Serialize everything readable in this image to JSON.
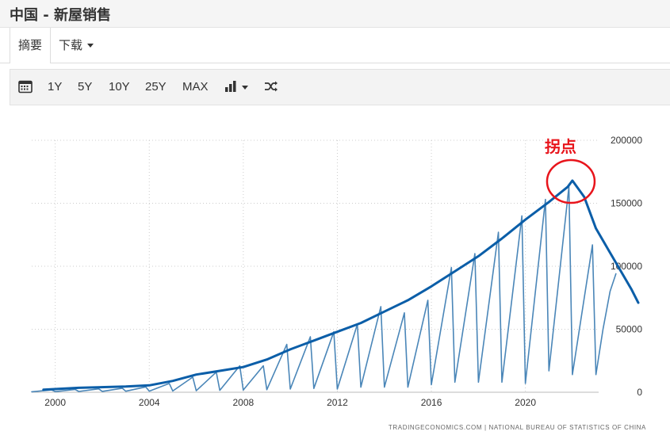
{
  "title": "中国 - 新屋销售",
  "tabs": {
    "summary": "摘要",
    "download": "下载"
  },
  "toolbar": {
    "calendar_icon": "calendar-icon",
    "ranges": [
      "1Y",
      "5Y",
      "10Y",
      "25Y",
      "MAX"
    ],
    "chart_type_icon": "bar-chart-icon",
    "shuffle_icon": "shuffle-icon"
  },
  "source_text": "TRADINGECONOMICS.COM | NATIONAL BUREAU OF STATISTICS OF CHINA",
  "annotation": {
    "label": "拐点",
    "color": "#e8141b"
  },
  "colors": {
    "monthly": "#4a86b8",
    "trend": "#0b5ea8",
    "grid": "#cccccc"
  },
  "chart_data": {
    "type": "line",
    "x_ticks": [
      "2000",
      "2004",
      "2008",
      "2012",
      "2016",
      "2020"
    ],
    "y_ticks": [
      "0",
      "50000",
      "100000",
      "150000",
      "200000"
    ],
    "xlim": [
      1999,
      2025
    ],
    "ylim": [
      0,
      200000
    ],
    "grid": true,
    "series": [
      {
        "key": "monthly",
        "values": [
          {
            "x": 1999.0,
            "y": 400
          },
          {
            "x": 1999.85,
            "y": 1800
          },
          {
            "x": 2000.0,
            "y": 500
          },
          {
            "x": 2000.85,
            "y": 2200
          },
          {
            "x": 2001.0,
            "y": 600
          },
          {
            "x": 2001.85,
            "y": 2700
          },
          {
            "x": 2002.0,
            "y": 700
          },
          {
            "x": 2002.85,
            "y": 3200
          },
          {
            "x": 2003.0,
            "y": 800
          },
          {
            "x": 2003.85,
            "y": 4200
          },
          {
            "x": 2004.0,
            "y": 900
          },
          {
            "x": 2004.85,
            "y": 7000
          },
          {
            "x": 2005.0,
            "y": 1000
          },
          {
            "x": 2005.85,
            "y": 12000
          },
          {
            "x": 2006.0,
            "y": 1200
          },
          {
            "x": 2006.85,
            "y": 16000
          },
          {
            "x": 2007.0,
            "y": 1500
          },
          {
            "x": 2007.85,
            "y": 21000
          },
          {
            "x": 2008.0,
            "y": 1700
          },
          {
            "x": 2008.85,
            "y": 21000
          },
          {
            "x": 2009.0,
            "y": 2000
          },
          {
            "x": 2009.85,
            "y": 38000
          },
          {
            "x": 2010.0,
            "y": 2500
          },
          {
            "x": 2010.85,
            "y": 44000
          },
          {
            "x": 2011.0,
            "y": 3000
          },
          {
            "x": 2011.85,
            "y": 48000
          },
          {
            "x": 2012.0,
            "y": 2500
          },
          {
            "x": 2012.85,
            "y": 54000
          },
          {
            "x": 2013.0,
            "y": 4000
          },
          {
            "x": 2013.85,
            "y": 68000
          },
          {
            "x": 2014.0,
            "y": 4000
          },
          {
            "x": 2014.85,
            "y": 63000
          },
          {
            "x": 2015.0,
            "y": 4000
          },
          {
            "x": 2015.85,
            "y": 73000
          },
          {
            "x": 2016.0,
            "y": 6000
          },
          {
            "x": 2016.85,
            "y": 99000
          },
          {
            "x": 2017.0,
            "y": 8000
          },
          {
            "x": 2017.85,
            "y": 110000
          },
          {
            "x": 2018.0,
            "y": 8000
          },
          {
            "x": 2018.85,
            "y": 127000
          },
          {
            "x": 2019.0,
            "y": 8000
          },
          {
            "x": 2019.85,
            "y": 140000
          },
          {
            "x": 2020.0,
            "y": 7000
          },
          {
            "x": 2020.85,
            "y": 153000
          },
          {
            "x": 2021.0,
            "y": 17000
          },
          {
            "x": 2021.85,
            "y": 163000
          },
          {
            "x": 2022.0,
            "y": 14000
          },
          {
            "x": 2022.85,
            "y": 117000
          },
          {
            "x": 2023.0,
            "y": 14000
          },
          {
            "x": 2023.3,
            "y": 50000
          },
          {
            "x": 2023.6,
            "y": 80000
          },
          {
            "x": 2023.85,
            "y": 94000
          }
        ]
      },
      {
        "key": "trend",
        "values": [
          {
            "x": 1999.5,
            "y": 2000
          },
          {
            "x": 2001,
            "y": 3500
          },
          {
            "x": 2003,
            "y": 4500
          },
          {
            "x": 2004,
            "y": 5500
          },
          {
            "x": 2005,
            "y": 9000
          },
          {
            "x": 2006,
            "y": 14000
          },
          {
            "x": 2007,
            "y": 17000
          },
          {
            "x": 2008,
            "y": 20000
          },
          {
            "x": 2009,
            "y": 26000
          },
          {
            "x": 2010,
            "y": 34000
          },
          {
            "x": 2011,
            "y": 41000
          },
          {
            "x": 2012,
            "y": 48000
          },
          {
            "x": 2013,
            "y": 55000
          },
          {
            "x": 2014,
            "y": 64000
          },
          {
            "x": 2015,
            "y": 73000
          },
          {
            "x": 2016,
            "y": 84000
          },
          {
            "x": 2017,
            "y": 96000
          },
          {
            "x": 2018,
            "y": 108000
          },
          {
            "x": 2019,
            "y": 122000
          },
          {
            "x": 2020,
            "y": 137000
          },
          {
            "x": 2021,
            "y": 151000
          },
          {
            "x": 2021.8,
            "y": 163000
          },
          {
            "x": 2022.0,
            "y": 168000
          },
          {
            "x": 2022.5,
            "y": 155000
          },
          {
            "x": 2023.0,
            "y": 130000
          },
          {
            "x": 2023.5,
            "y": 114000
          },
          {
            "x": 2024.0,
            "y": 98000
          },
          {
            "x": 2024.5,
            "y": 82000
          },
          {
            "x": 2024.8,
            "y": 71000
          }
        ]
      }
    ],
    "annotation_point": {
      "x": 2022.0,
      "y": 166000
    }
  }
}
